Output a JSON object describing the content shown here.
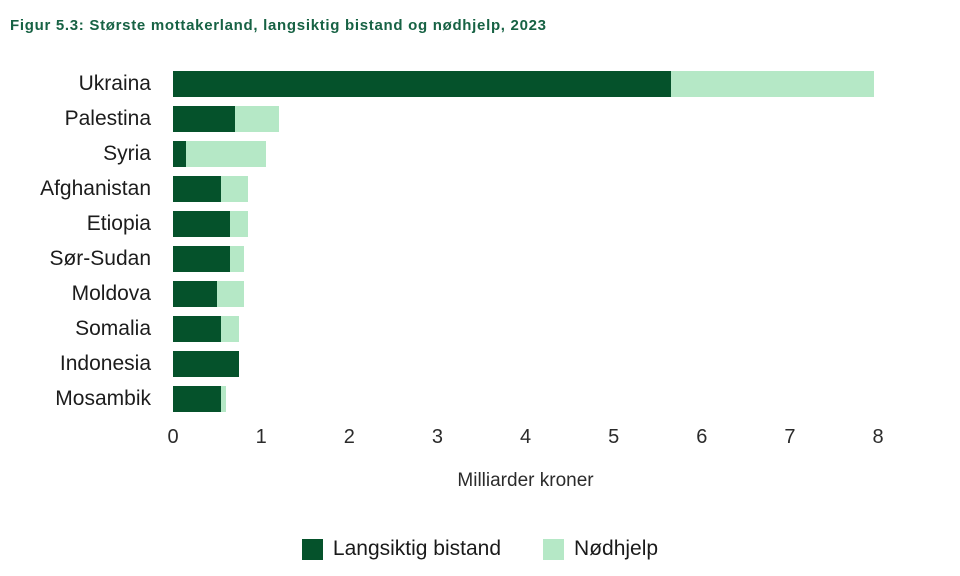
{
  "title": "Figur 5.3: Største mottakerland, langsiktig bistand og nødhjelp, 2023",
  "colors": {
    "langsiktig_bistand": "#05522b",
    "nodhjelp": "#b5e8c6",
    "title_text": "#176244"
  },
  "chart_data": {
    "type": "bar",
    "orientation": "horizontal",
    "stacked": true,
    "title": "Figur 5.3: Største mottakerland, langsiktig bistand og nødhjelp, 2023",
    "categories": [
      "Ukraina",
      "Palestina",
      "Syria",
      "Afghanistan",
      "Etiopia",
      "Sør-Sudan",
      "Moldova",
      "Somalia",
      "Indonesia",
      "Mosambik"
    ],
    "series": [
      {
        "name": "Langsiktig bistand",
        "color": "#05522b",
        "values": [
          5.65,
          0.7,
          0.15,
          0.55,
          0.65,
          0.65,
          0.5,
          0.55,
          0.75,
          0.55
        ]
      },
      {
        "name": "Nødhjelp",
        "color": "#b5e8c6",
        "values": [
          2.3,
          0.5,
          0.9,
          0.3,
          0.2,
          0.15,
          0.3,
          0.2,
          0.0,
          0.05
        ]
      }
    ],
    "xlabel": "Milliarder kroner",
    "ylabel": "",
    "xticks": [
      "0",
      "1",
      "2",
      "3",
      "4",
      "5",
      "6",
      "7",
      "8"
    ],
    "xlim": [
      0,
      8
    ],
    "grid": false,
    "legend_position": "bottom"
  }
}
